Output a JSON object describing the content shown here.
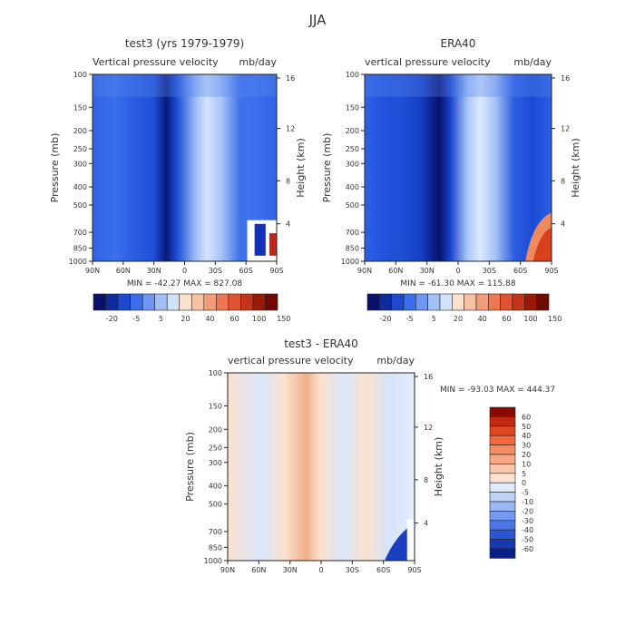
{
  "figure": {
    "title": "JJA"
  },
  "colors": {
    "deep_blue": "#08106b",
    "blue": "#1f52e0",
    "mid_blue": "#3f77ef",
    "light_blue": "#a9c6f7",
    "pale_blue": "#d8e6fb",
    "peach": "#fbe2cc",
    "salmon": "#f4a57e",
    "red": "#d42a12",
    "dark_red": "#6e0a00"
  },
  "chart_data": [
    {
      "id": "top-left",
      "type": "heatmap",
      "title": "test3 (yrs 1979-1979)",
      "subtitle_left": "Vertical pressure velocity",
      "subtitle_right": "mb/day",
      "ylabel": "Pressure (mb)",
      "ylabel_right": "Height (km)",
      "x_ticks": [
        "90N",
        "60N",
        "30N",
        "0",
        "30S",
        "60S",
        "90S"
      ],
      "y_ticks": [
        100,
        150,
        200,
        250,
        300,
        400,
        500,
        700,
        850,
        1000
      ],
      "y_ticks_right": [
        16,
        12,
        8,
        4
      ],
      "min_max": "MIN = -42.27   MAX = 827.08",
      "colorbar_labels": [
        "-20",
        "-5",
        "5",
        "20",
        "40",
        "60",
        "100",
        "150"
      ]
    },
    {
      "id": "top-right",
      "type": "heatmap",
      "title": "ERA40",
      "subtitle_left": "vertical pressure velocity",
      "subtitle_right": "mb/day",
      "ylabel": "Pressure (mb)",
      "ylabel_right": "Height (km)",
      "x_ticks": [
        "90N",
        "60N",
        "30N",
        "0",
        "30S",
        "60S",
        "90S"
      ],
      "y_ticks": [
        100,
        150,
        200,
        250,
        300,
        400,
        500,
        700,
        850,
        1000
      ],
      "y_ticks_right": [
        16,
        12,
        8,
        4
      ],
      "min_max": "MIN = -61.30   MAX = 115.88",
      "colorbar_labels": [
        "-20",
        "-5",
        "5",
        "20",
        "40",
        "60",
        "100",
        "150"
      ]
    },
    {
      "id": "bottom",
      "type": "heatmap",
      "title": "test3 - ERA40",
      "subtitle_left": "vertical pressure velocity",
      "subtitle_right": "mb/day",
      "ylabel": "Pressure (mb)",
      "ylabel_right": "Height (km)",
      "x_ticks": [
        "90N",
        "60N",
        "30N",
        "0",
        "30S",
        "60S",
        "90S"
      ],
      "y_ticks": [
        100,
        150,
        200,
        250,
        300,
        400,
        500,
        700,
        850,
        1000
      ],
      "y_ticks_right": [
        16,
        12,
        8,
        4
      ],
      "min_max": "MIN = -93.03   MAX = 444.37",
      "colorbar_labels": [
        "60",
        "50",
        "40",
        "30",
        "20",
        "10",
        "5",
        "0",
        "-5",
        "-10",
        "-20",
        "-30",
        "-40",
        "-50",
        "-60"
      ],
      "colorbar_colors": [
        "#8a0a00",
        "#c02a10",
        "#e0481e",
        "#f26a3c",
        "#f68c60",
        "#f7a985",
        "#fac8ad",
        "#fde2cf",
        "#dfeafc",
        "#bcd2f8",
        "#9ab8f3",
        "#7499ee",
        "#4a75e6",
        "#2a56d6",
        "#1638b0",
        "#0a1f85"
      ]
    }
  ]
}
